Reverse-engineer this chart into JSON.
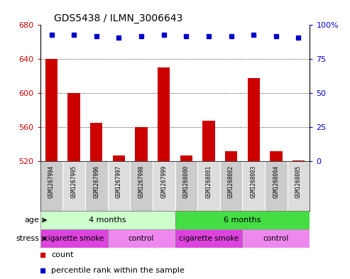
{
  "title": "GDS5438 / ILMN_3006643",
  "samples": [
    "GSM1267994",
    "GSM1267995",
    "GSM1267996",
    "GSM1267997",
    "GSM1267998",
    "GSM1267999",
    "GSM1268000",
    "GSM1268001",
    "GSM1268002",
    "GSM1268003",
    "GSM1268004",
    "GSM1268005"
  ],
  "counts": [
    640,
    600,
    565,
    527,
    560,
    630,
    527,
    568,
    532,
    618,
    532,
    521
  ],
  "percentile_ranks": [
    93,
    93,
    92,
    91,
    92,
    93,
    92,
    92,
    92,
    93,
    92,
    91
  ],
  "ymin": 520,
  "ymax": 680,
  "yticks": [
    520,
    560,
    600,
    640,
    680
  ],
  "right_yticks": [
    0,
    25,
    50,
    75,
    100
  ],
  "bar_color": "#cc0000",
  "dot_color": "#0000cc",
  "age_4months_color": "#ccffcc",
  "age_6months_color": "#44dd44",
  "stress_smoke_color": "#dd44dd",
  "stress_control_color": "#ee88ee",
  "tick_bg_color": "#cccccc",
  "background_color": "#ffffff"
}
